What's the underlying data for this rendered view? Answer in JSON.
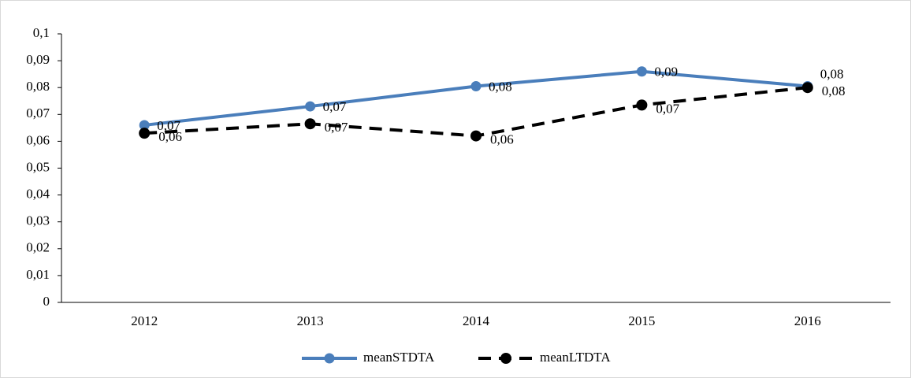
{
  "chart_data": {
    "type": "line",
    "categories": [
      "2012",
      "2013",
      "2014",
      "2015",
      "2016"
    ],
    "series": [
      {
        "name": "meanSTDTA",
        "color": "#4a7ebb",
        "dashed": false,
        "values": [
          0.066,
          0.073,
          0.0805,
          0.086,
          0.0805
        ],
        "value_labels": [
          "0,07",
          "0,07",
          "0,08",
          "0,09",
          "0,08"
        ]
      },
      {
        "name": "meanLTDTA",
        "color": "#000000",
        "dashed": true,
        "values": [
          0.063,
          0.0665,
          0.062,
          0.0735,
          0.08
        ],
        "value_labels": [
          "0,06",
          "0,07",
          "0,06",
          "0,07",
          "0,08"
        ]
      }
    ],
    "ylim": [
      0,
      0.1
    ],
    "yticks": [
      0,
      {
        "value": 0.01,
        "label": "0,01"
      },
      {
        "value": 0.02,
        "label": "0,02"
      },
      {
        "value": 0.03,
        "label": "0,03"
      },
      {
        "value": 0.04,
        "label": "0,04"
      },
      {
        "value": 0.05,
        "label": "0,05"
      },
      {
        "value": 0.06,
        "label": "0,06"
      },
      {
        "value": 0.07,
        "label": "0,07"
      },
      {
        "value": 0.08,
        "label": "0,08"
      },
      {
        "value": 0.09,
        "label": "0,09"
      },
      {
        "value": 0.1,
        "label": "0,1"
      }
    ],
    "grid": false,
    "legend": "bottom"
  }
}
